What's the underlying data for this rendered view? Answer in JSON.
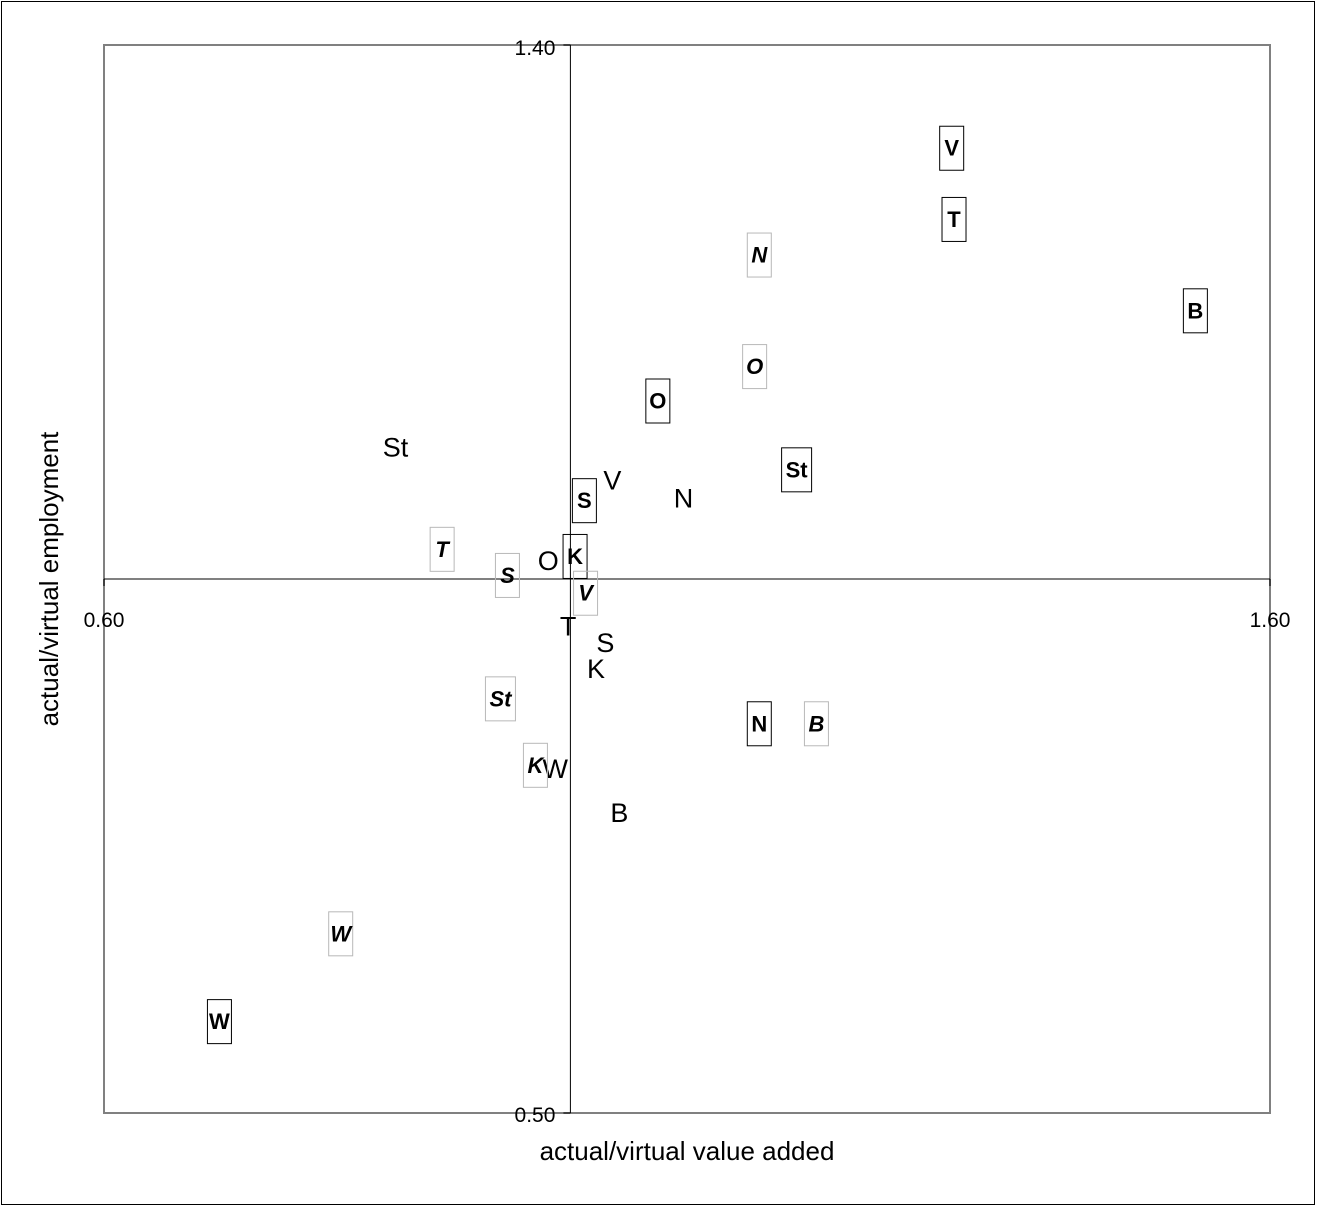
{
  "chart_data": {
    "type": "scatter",
    "xlabel": "actual/virtual value added",
    "ylabel": "actual/virtual employment",
    "xlim": [
      0.6,
      1.6
    ],
    "ylim": [
      0.5,
      1.4
    ],
    "x_cross": 1.0,
    "y_cross": 0.95,
    "x_tick_labels": [
      "0.60",
      "1.60"
    ],
    "y_tick_labels": [
      "1.40",
      "0.50"
    ],
    "grid": false,
    "legend": "none",
    "series": [
      {
        "style": "plain",
        "points": [
          {
            "label": "St",
            "x": 0.85,
            "y": 1.061
          },
          {
            "label": "V",
            "x": 1.036,
            "y": 1.033
          },
          {
            "label": "N",
            "x": 1.097,
            "y": 1.018
          },
          {
            "label": "O",
            "x": 0.981,
            "y": 0.965
          },
          {
            "label": "T",
            "x": 0.998,
            "y": 0.91
          },
          {
            "label": "S",
            "x": 1.03,
            "y": 0.896
          },
          {
            "label": "K",
            "x": 1.022,
            "y": 0.874
          },
          {
            "label": "W",
            "x": 0.987,
            "y": 0.79
          },
          {
            "label": "B",
            "x": 1.042,
            "y": 0.753
          }
        ]
      },
      {
        "style": "boxed-bold",
        "points": [
          {
            "label": "V",
            "x": 1.327,
            "y": 1.313
          },
          {
            "label": "T",
            "x": 1.329,
            "y": 1.253
          },
          {
            "label": "B",
            "x": 1.536,
            "y": 1.176
          },
          {
            "label": "O",
            "x": 1.075,
            "y": 1.1
          },
          {
            "label": "St",
            "x": 1.194,
            "y": 1.042
          },
          {
            "label": "S",
            "x": 1.012,
            "y": 1.016
          },
          {
            "label": "K",
            "x": 1.004,
            "y": 0.969
          },
          {
            "label": "N",
            "x": 1.162,
            "y": 0.828
          },
          {
            "label": "W",
            "x": 0.699,
            "y": 0.577
          }
        ]
      },
      {
        "style": "boxed-bold-italic",
        "points": [
          {
            "label": "N",
            "x": 1.162,
            "y": 1.223
          },
          {
            "label": "O",
            "x": 1.158,
            "y": 1.129
          },
          {
            "label": "T",
            "x": 0.89,
            "y": 0.975
          },
          {
            "label": "S",
            "x": 0.946,
            "y": 0.953
          },
          {
            "label": "V",
            "x": 1.013,
            "y": 0.938
          },
          {
            "label": "St",
            "x": 0.94,
            "y": 0.849
          },
          {
            "label": "B",
            "x": 1.211,
            "y": 0.828
          },
          {
            "label": "K",
            "x": 0.97,
            "y": 0.793
          },
          {
            "label": "W",
            "x": 0.803,
            "y": 0.651
          }
        ]
      }
    ]
  }
}
